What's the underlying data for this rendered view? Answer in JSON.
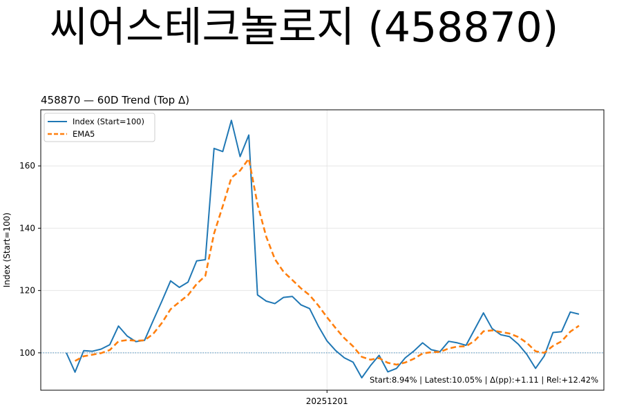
{
  "page_title": "씨어스테크놀로지 (458870)",
  "chart_data": {
    "type": "line",
    "title": "458870 — 60D Trend (Top Δ)",
    "xlabel": "",
    "ylabel": "Index (Start=100)",
    "x_tick_labels": [
      "20251201"
    ],
    "x_tick_index": 30,
    "y_ticks": [
      100,
      120,
      140,
      160
    ],
    "ylim": [
      88,
      178
    ],
    "grid": true,
    "legend_position": "top-left",
    "baseline": 100,
    "annotation": "Start:8.94% | Latest:10.05% | Δ(pp):+1.11 | Rel:+12.42%",
    "series": [
      {
        "name": "Index (Start=100)",
        "color": "#1f77b4",
        "style": "solid",
        "values": [
          100,
          93.8,
          100.7,
          100.5,
          101.2,
          102.6,
          108.6,
          105.4,
          103.6,
          104.0,
          110.4,
          116.6,
          123.1,
          121.0,
          122.7,
          129.5,
          129.9,
          165.6,
          164.6,
          174.6,
          163.0,
          169.9,
          118.6,
          116.6,
          115.8,
          117.8,
          118.1,
          115.4,
          114.2,
          108.6,
          103.8,
          100.7,
          98.4,
          97.0,
          92.0,
          95.9,
          99.2,
          93.9,
          95.0,
          98.4,
          100.6,
          103.2,
          101.0,
          100.4,
          103.7,
          103.2,
          102.4,
          107.6,
          112.8,
          107.8,
          105.8,
          105.2,
          102.8,
          99.5,
          95.0,
          99.0,
          106.5,
          106.8,
          113.1,
          112.4
        ]
      },
      {
        "name": "EMA5",
        "color": "#ff7f0e",
        "style": "dashed",
        "values": [
          null,
          97.4,
          98.9,
          99.4,
          99.9,
          100.9,
          103.7,
          104.1,
          103.9,
          104.0,
          106.1,
          109.6,
          114.0,
          116.3,
          118.5,
          122.1,
          124.7,
          138.3,
          147.1,
          156.2,
          158.5,
          162.3,
          147.7,
          137.3,
          130.1,
          126.0,
          123.4,
          120.7,
          118.5,
          115.2,
          111.4,
          107.9,
          104.7,
          102.1,
          98.7,
          97.8,
          98.3,
          96.8,
          96.2,
          96.9,
          98.1,
          99.8,
          100.2,
          100.3,
          101.4,
          102.0,
          102.1,
          103.9,
          106.9,
          107.2,
          106.7,
          106.2,
          105.1,
          103.2,
          100.5,
          100.0,
          102.2,
          103.7,
          106.8,
          108.7
        ]
      }
    ]
  }
}
